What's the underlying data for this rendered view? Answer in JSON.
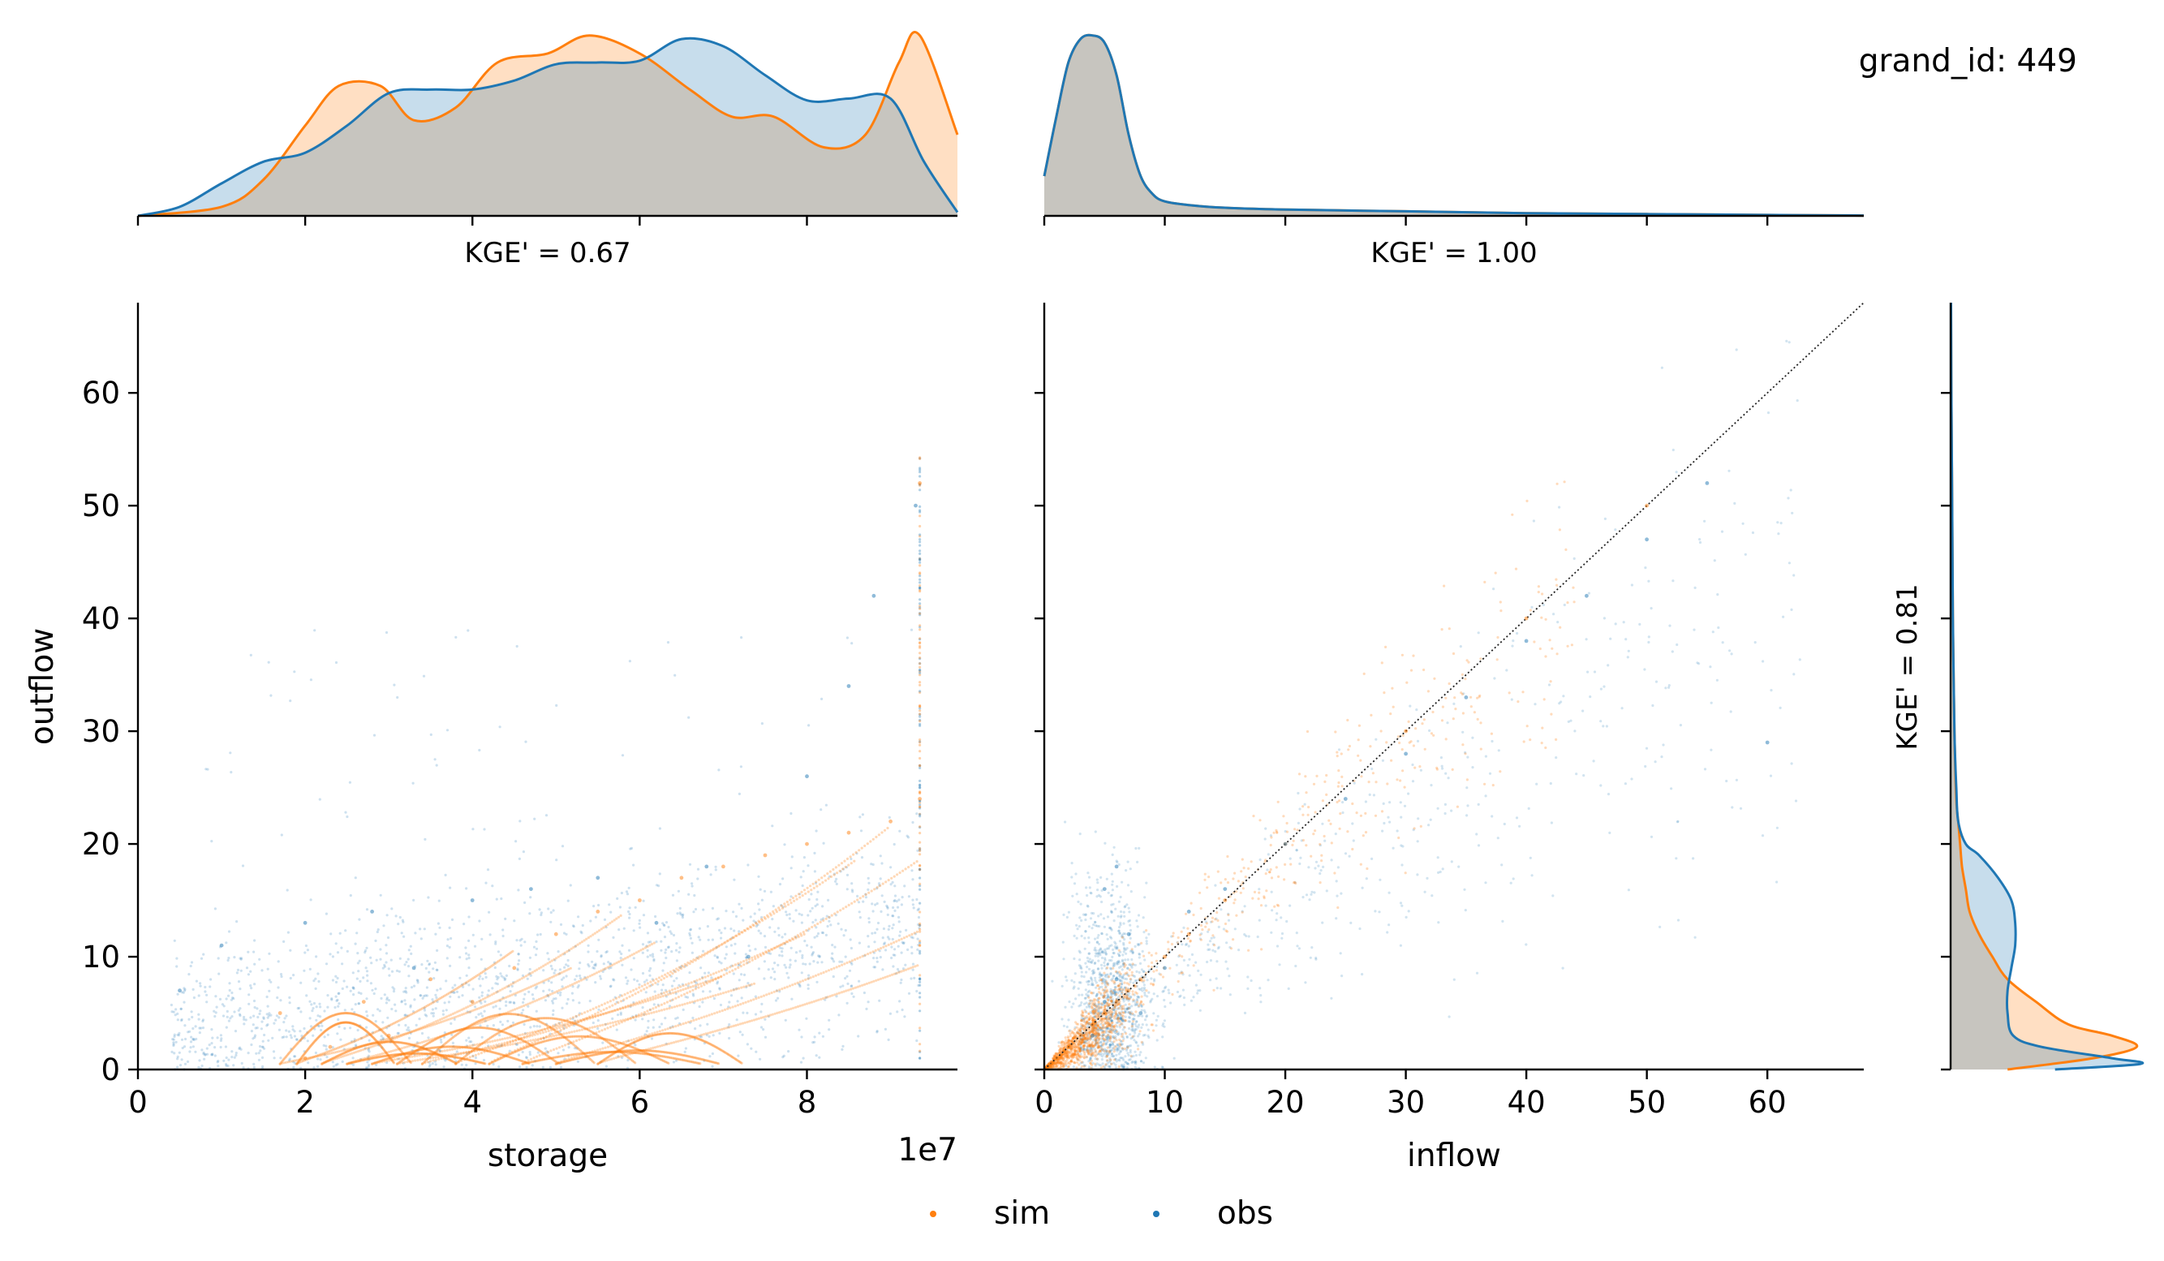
{
  "header": {
    "grand_id_label": "grand_id: 449"
  },
  "legend": {
    "items": [
      {
        "label": "sim",
        "color": "#ff7f0e"
      },
      {
        "label": "obs",
        "color": "#1f77b4"
      }
    ],
    "placement": "bottom-center"
  },
  "chart_data": [
    {
      "type": "scatter",
      "name": "storage-vs-outflow",
      "xlabel": "storage",
      "ylabel": "outflow",
      "x_offset_text": "1e7",
      "xlim": [
        0,
        98000000
      ],
      "ylim": [
        0,
        68
      ],
      "xticks": [
        0,
        20000000,
        40000000,
        60000000,
        80000000
      ],
      "xtick_labels": [
        "0",
        "2",
        "4",
        "6",
        "8"
      ],
      "yticks": [
        0,
        10,
        20,
        30,
        40,
        50,
        60
      ],
      "ytick_labels": [
        "0",
        "10",
        "20",
        "30",
        "40",
        "50",
        "60"
      ],
      "storage_max": 93500000,
      "series": [
        {
          "name": "sim",
          "color": "#ff7f0e",
          "points": [
            [
              17000000,
              5
            ],
            [
              20000000,
              1
            ],
            [
              23000000,
              2
            ],
            [
              27000000,
              6
            ],
            [
              30000000,
              3
            ],
            [
              35000000,
              8
            ],
            [
              40000000,
              6
            ],
            [
              45000000,
              9
            ],
            [
              50000000,
              12
            ],
            [
              55000000,
              14
            ],
            [
              60000000,
              15
            ],
            [
              65000000,
              17
            ],
            [
              70000000,
              18
            ],
            [
              75000000,
              19
            ],
            [
              80000000,
              20
            ],
            [
              85000000,
              21
            ],
            [
              90000000,
              22
            ],
            [
              93500000,
              24
            ],
            [
              93500000,
              52
            ]
          ]
        },
        {
          "name": "obs",
          "color": "#1f77b4",
          "points": [
            [
              5000000,
              7
            ],
            [
              10000000,
              11
            ],
            [
              20000000,
              13
            ],
            [
              28000000,
              14
            ],
            [
              33000000,
              9
            ],
            [
              40000000,
              15
            ],
            [
              47000000,
              16
            ],
            [
              55000000,
              17
            ],
            [
              62000000,
              13
            ],
            [
              68000000,
              18
            ],
            [
              73000000,
              10
            ],
            [
              80000000,
              26
            ],
            [
              85000000,
              34
            ],
            [
              88000000,
              42
            ],
            [
              93000000,
              50
            ]
          ]
        }
      ]
    },
    {
      "type": "scatter",
      "name": "inflow-vs-outflow",
      "xlabel": "inflow",
      "ylabel": "",
      "xlim": [
        0,
        68
      ],
      "ylim": [
        0,
        68
      ],
      "xticks": [
        0,
        10,
        20,
        30,
        40,
        50,
        60
      ],
      "xtick_labels": [
        "0",
        "10",
        "20",
        "30",
        "40",
        "50",
        "60"
      ],
      "yticks": [
        0,
        10,
        20,
        30,
        40,
        50,
        60
      ],
      "identity_line": true,
      "series": [
        {
          "name": "sim",
          "color": "#ff7f0e",
          "points": [
            [
              0.5,
              0.5
            ],
            [
              1,
              1
            ],
            [
              2,
              2
            ],
            [
              3,
              3
            ],
            [
              4,
              4
            ],
            [
              5,
              5
            ],
            [
              6,
              6
            ],
            [
              7,
              7
            ],
            [
              8,
              8
            ],
            [
              10,
              10
            ],
            [
              12,
              12
            ],
            [
              15,
              15
            ],
            [
              20,
              20
            ],
            [
              30,
              30
            ],
            [
              40,
              40
            ],
            [
              50,
              50
            ]
          ]
        },
        {
          "name": "obs",
          "color": "#1f77b4",
          "points": [
            [
              4,
              3
            ],
            [
              5,
              6
            ],
            [
              6,
              8
            ],
            [
              7,
              12
            ],
            [
              5,
              16
            ],
            [
              6,
              18
            ],
            [
              8,
              5
            ],
            [
              10,
              9
            ],
            [
              12,
              14
            ],
            [
              15,
              16
            ],
            [
              20,
              20
            ],
            [
              25,
              24
            ],
            [
              30,
              28
            ],
            [
              35,
              33
            ],
            [
              40,
              38
            ],
            [
              45,
              42
            ],
            [
              50,
              47
            ],
            [
              55,
              52
            ],
            [
              60,
              29
            ]
          ]
        }
      ]
    },
    {
      "type": "area",
      "name": "storage-kde-top",
      "annotation": "KGE' = 0.67",
      "xlim": [
        0,
        98000000
      ],
      "ylim": [
        0,
        1.03
      ],
      "xticks": [
        0,
        20000000,
        40000000,
        60000000,
        80000000
      ],
      "series": [
        {
          "name": "sim",
          "color": "#ff7f0e",
          "x": [
            0,
            10000000,
            15000000,
            20000000,
            24000000,
            29000000,
            33000000,
            38000000,
            43000000,
            49000000,
            54000000,
            60000000,
            66000000,
            71000000,
            76000000,
            82000000,
            87000000,
            91000000,
            93500000,
            98000000
          ],
          "y": [
            0,
            0.05,
            0.2,
            0.5,
            0.72,
            0.72,
            0.53,
            0.6,
            0.85,
            0.9,
            1.0,
            0.9,
            0.7,
            0.55,
            0.55,
            0.38,
            0.45,
            0.85,
            1.0,
            0.45
          ]
        },
        {
          "name": "obs",
          "color": "#1f77b4",
          "x": [
            0,
            5000000,
            10000000,
            15000000,
            20000000,
            25000000,
            30000000,
            35000000,
            40000000,
            45000000,
            50000000,
            55000000,
            60000000,
            65000000,
            70000000,
            75000000,
            80000000,
            85000000,
            90000000,
            94000000,
            98000000
          ],
          "y": [
            0,
            0.05,
            0.18,
            0.3,
            0.35,
            0.5,
            0.68,
            0.7,
            0.7,
            0.75,
            0.84,
            0.85,
            0.86,
            0.98,
            0.94,
            0.78,
            0.64,
            0.65,
            0.65,
            0.3,
            0.02
          ]
        }
      ]
    },
    {
      "type": "area",
      "name": "inflow-kde-top",
      "annotation": "KGE' = 1.00",
      "xlim": [
        0,
        68
      ],
      "ylim": [
        0,
        1.03
      ],
      "xticks": [
        0,
        10,
        20,
        30,
        40,
        50,
        60
      ],
      "series": [
        {
          "name": "sim",
          "color": "#ff7f0e",
          "x": [
            0,
            1,
            2,
            3,
            4,
            5,
            6,
            7,
            8,
            9,
            10,
            12,
            15,
            20,
            30,
            40,
            50,
            60,
            68
          ],
          "y": [
            0.22,
            0.55,
            0.85,
            0.98,
            1.0,
            0.96,
            0.78,
            0.45,
            0.22,
            0.12,
            0.08,
            0.06,
            0.045,
            0.035,
            0.025,
            0.015,
            0.01,
            0.005,
            0.002
          ]
        },
        {
          "name": "obs",
          "color": "#1f77b4",
          "x": [
            0,
            1,
            2,
            3,
            4,
            5,
            6,
            7,
            8,
            9,
            10,
            12,
            15,
            20,
            30,
            40,
            50,
            60,
            68
          ],
          "y": [
            0.22,
            0.55,
            0.85,
            0.98,
            1.0,
            0.96,
            0.78,
            0.45,
            0.22,
            0.12,
            0.08,
            0.06,
            0.045,
            0.035,
            0.025,
            0.015,
            0.01,
            0.005,
            0.002
          ]
        }
      ]
    },
    {
      "type": "area",
      "name": "outflow-kde-right",
      "annotation": "KGE' = 0.81",
      "orientation": "vertical",
      "ylim": [
        0,
        68
      ],
      "xlim": [
        0,
        1.03
      ],
      "yticks": [
        0,
        10,
        20,
        30,
        40,
        50,
        60
      ],
      "series": [
        {
          "name": "sim",
          "color": "#ff7f0e",
          "y": [
            0,
            1,
            2,
            3,
            4,
            6,
            8,
            10,
            12,
            14,
            16,
            18,
            20,
            22,
            24,
            30,
            40,
            50,
            60,
            68
          ],
          "x": [
            0.3,
            0.75,
            0.98,
            0.85,
            0.62,
            0.45,
            0.3,
            0.22,
            0.15,
            0.1,
            0.08,
            0.06,
            0.05,
            0.04,
            0.03,
            0.02,
            0.012,
            0.008,
            0.004,
            0.002
          ]
        },
        {
          "name": "obs",
          "color": "#1f77b4",
          "y": [
            0,
            0.5,
            1,
            2,
            3,
            5,
            7,
            9,
            11,
            13,
            15,
            17,
            19,
            20,
            22,
            25,
            30,
            40,
            50,
            60,
            68
          ],
          "x": [
            0.55,
            1.0,
            0.85,
            0.48,
            0.33,
            0.3,
            0.3,
            0.32,
            0.34,
            0.34,
            0.32,
            0.25,
            0.15,
            0.08,
            0.04,
            0.03,
            0.02,
            0.012,
            0.008,
            0.004,
            0.002
          ]
        }
      ]
    }
  ]
}
